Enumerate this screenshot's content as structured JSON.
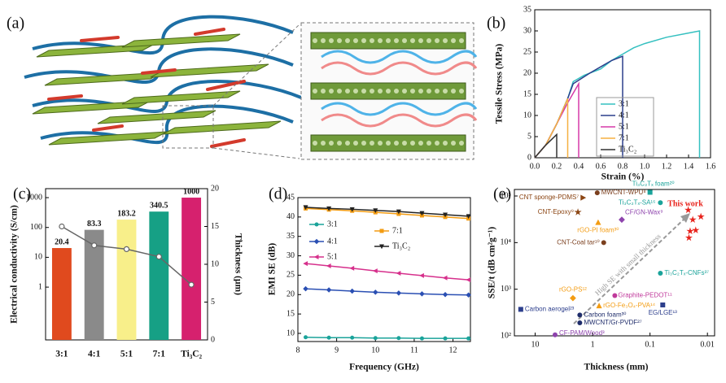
{
  "chart_data": [
    {
      "type": "image",
      "label": "(a)"
    },
    {
      "type": "line",
      "label": "(b)",
      "x_label": "Strain (%)",
      "y_label": "Tessile Stress (MPa)",
      "xlim": [
        0,
        1.6
      ],
      "xticks": [
        {
          "value": 0,
          "label": "0.0"
        },
        0.2,
        0.4,
        0.6,
        0.8,
        {
          "value": 1,
          "label": "1.0"
        },
        1.2,
        1.4,
        1.6
      ],
      "ylim": [
        0,
        35
      ],
      "yticks": [
        0,
        5,
        10,
        15,
        20,
        25,
        30,
        35
      ],
      "series": [
        {
          "name": "3:1",
          "color": "#35c0c0",
          "x": [
            0,
            0.1,
            0.2,
            0.3,
            0.35,
            0.45,
            0.6,
            0.7,
            0.8,
            0.9,
            1.0,
            1.2,
            1.4,
            1.5,
            1.5
          ],
          "values": [
            0,
            3,
            8,
            14,
            18,
            19.5,
            21,
            23,
            24.5,
            26,
            27,
            28.5,
            29.5,
            30,
            0
          ]
        },
        {
          "name": "4:1",
          "color": "#2c3e8c",
          "x": [
            0,
            0.1,
            0.2,
            0.3,
            0.35,
            0.5,
            0.6,
            0.7,
            0.8,
            0.8
          ],
          "values": [
            0,
            3,
            8,
            14,
            17.5,
            20,
            21.5,
            23,
            24,
            0
          ]
        },
        {
          "name": "5:1",
          "color": "#d63aa8",
          "x": [
            0,
            0.1,
            0.2,
            0.3,
            0.4,
            0.4
          ],
          "values": [
            0,
            3,
            8,
            13,
            17.5,
            0
          ]
        },
        {
          "name": "7:1",
          "color": "#f5b041",
          "x": [
            0,
            0.1,
            0.2,
            0.3,
            0.3
          ],
          "values": [
            0,
            3,
            8,
            14,
            0
          ]
        },
        {
          "name": "Ti₃C₂",
          "color": "#333333",
          "x": [
            0,
            0.1,
            0.2,
            0.2
          ],
          "values": [
            0,
            3,
            5.5,
            0
          ]
        }
      ]
    },
    {
      "type": "bar",
      "label": "(c)",
      "y_label": "Electrical conductivity (S/cm)",
      "y2_label": "Thickness (μm)",
      "categories": [
        "3:1",
        "4:1",
        "5:1",
        "7:1",
        "Ti₃C₂"
      ],
      "ylog": true,
      "ylim": [
        0.017,
        2000
      ],
      "yticks": [
        1,
        10,
        100,
        1000
      ],
      "y2lim": [
        0,
        20
      ],
      "y2ticks": [
        0,
        5,
        10,
        15,
        20
      ],
      "series": [
        {
          "colors": [
            "#e04a1e",
            "#8a8a8a",
            "#f8ef8a",
            "#16a085",
            "#d6216e"
          ],
          "values": [
            20.4,
            83.3,
            183.2,
            340.5,
            1000
          ]
        },
        {
          "type": "line",
          "axis": "y2",
          "color": "#666666",
          "values": [
            15,
            12.5,
            12,
            11,
            7.3
          ]
        }
      ]
    },
    {
      "type": "line",
      "label": "(d)",
      "x_label": "Frequency (GHz)",
      "y_label": "EMI SE (dB)",
      "xlim": [
        8,
        12.45
      ],
      "xticks": [
        8,
        9,
        10,
        11,
        12
      ],
      "ylim": [
        7.9,
        45
      ],
      "yticks": [
        10,
        15,
        20,
        25,
        30,
        35,
        40,
        45
      ],
      "x": [
        8.2,
        8.8,
        9.4,
        10.0,
        10.6,
        11.2,
        11.8,
        12.4
      ],
      "series": [
        {
          "name": "3:1",
          "color": "#1aa39a",
          "marker": "circle",
          "values": [
            9.0,
            8.9,
            8.9,
            8.8,
            8.8,
            8.7,
            8.7,
            8.7
          ]
        },
        {
          "name": "4:1",
          "color": "#2a4fb3",
          "marker": "diamond",
          "values": [
            21.5,
            21.2,
            20.9,
            20.6,
            20.4,
            20.2,
            20.0,
            19.9
          ]
        },
        {
          "name": "5:1",
          "color": "#d6308c",
          "marker": "tri-left",
          "values": [
            28.0,
            27.4,
            26.8,
            26.1,
            25.5,
            24.9,
            24.3,
            23.8
          ]
        },
        {
          "name": "7:1",
          "color": "#f39c12",
          "marker": "square",
          "values": [
            42.2,
            41.9,
            41.6,
            41.2,
            40.8,
            40.4,
            40.0,
            39.6
          ]
        },
        {
          "name": "Ti₃C₂",
          "color": "#222222",
          "marker": "tri-down",
          "values": [
            42.5,
            42.2,
            42.0,
            41.7,
            41.4,
            41.0,
            40.6,
            40.2
          ]
        }
      ]
    },
    {
      "type": "scatter",
      "label": "(e)",
      "x_label": "Thickness (mm)",
      "y_label": "SSE/t (dB cm²g⁻¹)",
      "xlog": true,
      "ylog": true,
      "xlim": [
        23,
        0.0075
      ],
      "xticks": [
        10,
        1,
        0.1,
        0.01
      ],
      "ylim": [
        100,
        138000
      ],
      "yticks": [
        {
          "value": 100,
          "label": "10²"
        },
        {
          "value": 1000,
          "label": "10³"
        },
        {
          "value": 10000,
          "label": "10⁴"
        },
        {
          "value": 100000,
          "label": "10⁵"
        }
      ],
      "annotation": "High SE with small thickness",
      "points": [
        {
          "label": "CNT sponge-PDMS⁷",
          "x": 1.47,
          "y": 92000,
          "color": "#8b4513",
          "marker": "tri-right"
        },
        {
          "label": "MWCNT-WPU⁸",
          "x": 0.83,
          "y": 117000,
          "color": "#7b3f1e",
          "marker": "circle"
        },
        {
          "label": "Ti₃C₂Tₓ foam²⁰",
          "x": 0.1,
          "y": 120000,
          "color": "#1aa39a",
          "marker": "square"
        },
        {
          "label": "Ti₃C₂Tₓ-SA¹⁶",
          "x": 0.066,
          "y": 72000,
          "color": "#1aa39a",
          "marker": "circle"
        },
        {
          "label": "CNT-Epoxy⁹",
          "x": 1.8,
          "y": 45000,
          "color": "#8b4513",
          "marker": "star"
        },
        {
          "label": "CF/GN-Wax⁹",
          "x": 0.31,
          "y": 31000,
          "color": "#8e44ad",
          "marker": "diamond"
        },
        {
          "label": "rGO-PI foam³⁰",
          "x": 0.8,
          "y": 27000,
          "color": "#f39c12",
          "marker": "triangle"
        },
        {
          "label": "CNT-Coal tar¹⁰",
          "x": 0.64,
          "y": 10000,
          "color": "#7b3f1e",
          "marker": "circle"
        },
        {
          "label": "Ti₃C₂Tₓ-CNFs³⁷",
          "x": 0.066,
          "y": 2200,
          "color": "#1aa39a",
          "marker": "circle"
        },
        {
          "label": "rGO-PS¹²",
          "x": 2.2,
          "y": 645,
          "color": "#f39c12",
          "marker": "diamond"
        },
        {
          "label": "Graphite-PEDOT¹¹",
          "x": 0.41,
          "y": 730,
          "color": "#c0399b",
          "marker": "circle"
        },
        {
          "label": "rGO-Fe₃O₄-PVA¹⁴",
          "x": 0.77,
          "y": 440,
          "color": "#f39c12",
          "marker": "triangle"
        },
        {
          "label": "Carbon aerogel²³",
          "x": 17.8,
          "y": 370,
          "color": "#2c3e8c",
          "marker": "square"
        },
        {
          "label": "Carbon foam³⁰",
          "x": 1.67,
          "y": 280,
          "color": "#1f2d6b",
          "marker": "circle"
        },
        {
          "label": "EG/LGE¹³",
          "x": 0.06,
          "y": 460,
          "color": "#2c3e8c",
          "marker": "square"
        },
        {
          "label": "MWCNT/Gr-PVDF²⁷",
          "x": 1.67,
          "y": 190,
          "color": "#1f2d6b",
          "marker": "circle"
        },
        {
          "label": "CF-PAM/Wood³",
          "x": 4.5,
          "y": 105,
          "color": "#8e44ad",
          "marker": "circle"
        }
      ],
      "highlight": {
        "label": "This work",
        "color": "#e8231c",
        "marker": "star",
        "x": [
          0.0216,
          0.013,
          0.018,
          0.02,
          0.016,
          0.021
        ],
        "y": [
          50000,
          36000,
          31000,
          17600,
          18400,
          12700
        ]
      }
    }
  ]
}
